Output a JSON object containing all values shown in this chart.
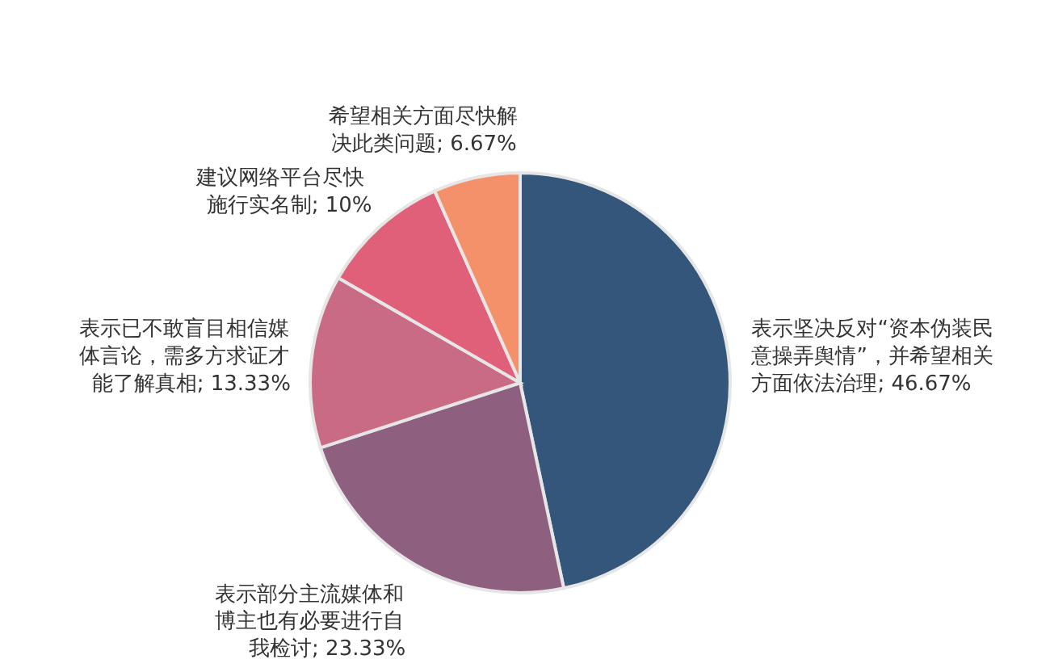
{
  "chart_data": {
    "type": "pie",
    "categories": [
      "表示坚决反对“资本伪装民意操弄舆情”，并希望相关方面依法治理",
      "表示部分主流媒体和博主也有必要进行自我检讨",
      "表示已不敢盲目相信媒体言论，需多方求证才能了解真相",
      "建议网络平台尽快施行实名制",
      "希望相关方面尽快解决此类问题"
    ],
    "values": [
      46.67,
      23.33,
      13.33,
      10,
      6.67
    ],
    "value_labels": [
      "; 46.67%",
      "; 23.33%",
      "; 13.33%",
      "; 10%",
      "; 6.67%"
    ],
    "colors": [
      "#34567a",
      "#8e5f7f",
      "#c96b85",
      "#e0607a",
      "#f4906a"
    ]
  }
}
